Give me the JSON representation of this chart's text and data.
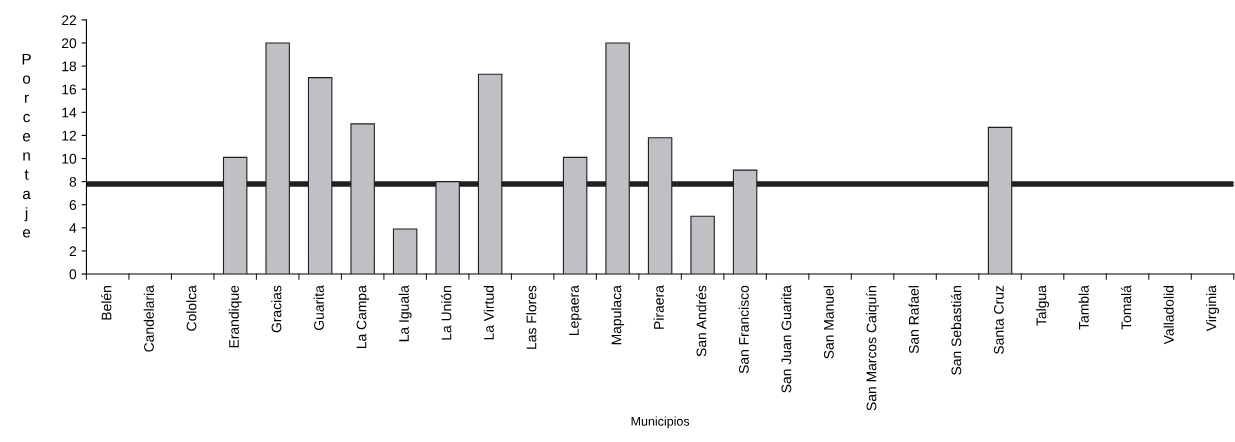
{
  "chart_data": {
    "type": "bar",
    "xlabel": "Municipios",
    "ylabel": "Porcentaje",
    "categories": [
      "Belén",
      "Candelaria",
      "Cololca",
      "Erandique",
      "Gracias",
      "Guarita",
      "La Campa",
      "La Iguala",
      "La Unión",
      "La Virtud",
      "Las Flores",
      "Lepaera",
      "Mapulaca",
      "Piraera",
      "San Andrés",
      "San Francisco",
      "San Juan Guarita",
      "San Manuel",
      "San Marcos Caiquín",
      "San Rafael",
      "San Sebastián",
      "Santa Cruz",
      "Talgua",
      "Tambla",
      "Tomalá",
      "Valladolid",
      "Virginia"
    ],
    "values": [
      0,
      0,
      0,
      10.1,
      20,
      17,
      13,
      3.9,
      8,
      17.3,
      0,
      10.1,
      20,
      11.8,
      5,
      9,
      0,
      0,
      0,
      0,
      0,
      12.7,
      0,
      0,
      0,
      0,
      0
    ],
    "color": "#bfc0c4",
    "ylim": [
      0,
      22
    ],
    "yticks": [
      0,
      2,
      4,
      6,
      8,
      10,
      12,
      14,
      16,
      18,
      20,
      22
    ],
    "ref_lines": [
      {
        "axis": "y",
        "value": 7.8,
        "color": "#231f20",
        "line_style": "solid"
      }
    ],
    "grid": false,
    "legend": false
  }
}
